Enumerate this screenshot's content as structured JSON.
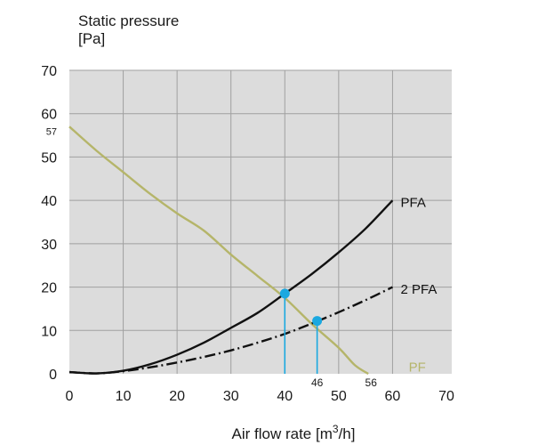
{
  "chart_data": {
    "type": "line",
    "ylabel_line1": "Static pressure",
    "ylabel_line2": "[Pa]",
    "xlabel_prefix": "Air flow rate [m",
    "xlabel_sup": "3",
    "xlabel_suffix": "/h]",
    "xlim": [
      0,
      70
    ],
    "ylim": [
      0,
      70
    ],
    "xticks": [
      "0",
      "10",
      "20",
      "30",
      "40",
      "50",
      "60",
      "70"
    ],
    "yticks": [
      "0",
      "10",
      "20",
      "30",
      "40",
      "50",
      "60",
      "70"
    ],
    "grid": true,
    "colors": {
      "plot_bg": "#dcdcdc",
      "grid": "#a0a0a0",
      "pf": "#b5b56a",
      "pfa": "#111111",
      "point": "#1aa8e0"
    },
    "series": [
      {
        "name": "PF",
        "color": "#b5b56a",
        "style": "solid",
        "x": [
          0,
          5,
          10,
          15,
          20,
          25,
          30,
          35,
          40,
          45,
          50,
          53,
          55.5
        ],
        "y": [
          57,
          51.5,
          46.5,
          41.5,
          37,
          33,
          27.5,
          22.5,
          17.5,
          11.5,
          6,
          2,
          0
        ]
      },
      {
        "name": "PFA",
        "color": "#111111",
        "style": "solid",
        "x": [
          0,
          5,
          10,
          15,
          20,
          25,
          30,
          35,
          40,
          45,
          50,
          55,
          60
        ],
        "y": [
          0.4,
          0.1,
          0.7,
          2.2,
          4.4,
          7.2,
          10.6,
          14.1,
          18.5,
          23,
          28,
          33.5,
          40
        ]
      },
      {
        "name": "2 PFA",
        "color": "#111111",
        "style": "dashdot",
        "x": [
          0,
          5,
          10,
          15,
          20,
          25,
          30,
          35,
          40,
          45,
          50,
          55,
          60
        ],
        "y": [
          0.4,
          0.1,
          0.6,
          1.5,
          2.6,
          3.9,
          5.4,
          7.2,
          9.2,
          11.6,
          14.2,
          17,
          20
        ]
      }
    ],
    "series_labels": [
      {
        "text": "PFA",
        "x": 61.5,
        "y": 39.5,
        "color": "#111111"
      },
      {
        "text": "2 PFA",
        "x": 61.5,
        "y": 19.5,
        "color": "#111111"
      },
      {
        "text": "PF",
        "x": 63,
        "y": 1.5,
        "color": "#b5b56a"
      }
    ],
    "intersections": [
      {
        "x": 40,
        "y": 18.5,
        "x_label": ""
      },
      {
        "x": 46,
        "y": 12.2,
        "x_label": "46"
      }
    ],
    "annotations": [
      {
        "text": "57",
        "x": 0,
        "y": 57,
        "side": "left"
      },
      {
        "text": "56",
        "x": 56,
        "y": 0,
        "side": "below"
      }
    ]
  }
}
